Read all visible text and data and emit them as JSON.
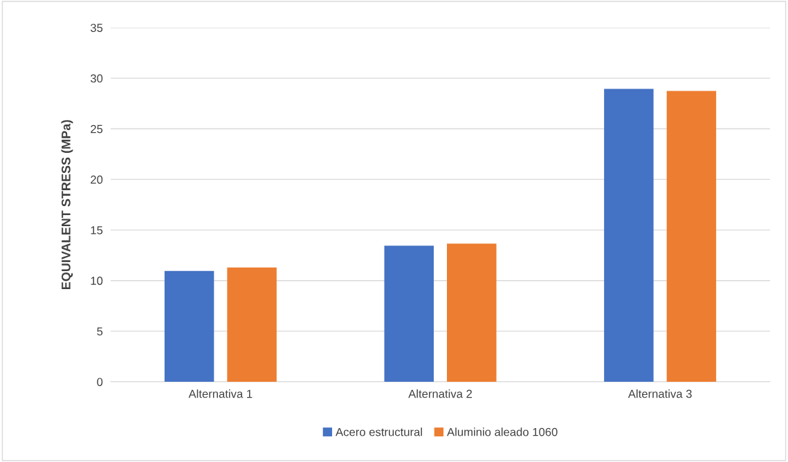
{
  "chart_data": {
    "type": "bar",
    "ylabel": "EQUIVALENT STRESS (MPa)",
    "categories": [
      "Alternativa 1",
      "Alternativa 2",
      "Alternativa 3"
    ],
    "series": [
      {
        "name": "Acero estructural",
        "color": "#4472c4",
        "values": [
          10.95,
          13.45,
          28.95
        ]
      },
      {
        "name": "Aluminio aleado 1060",
        "color": "#ed7d31",
        "values": [
          11.3,
          13.65,
          28.75
        ]
      }
    ],
    "ylim": [
      0,
      35
    ],
    "yticks": [
      0,
      5,
      10,
      15,
      20,
      25,
      30,
      35
    ],
    "grid": "y",
    "legend": "bottom"
  }
}
